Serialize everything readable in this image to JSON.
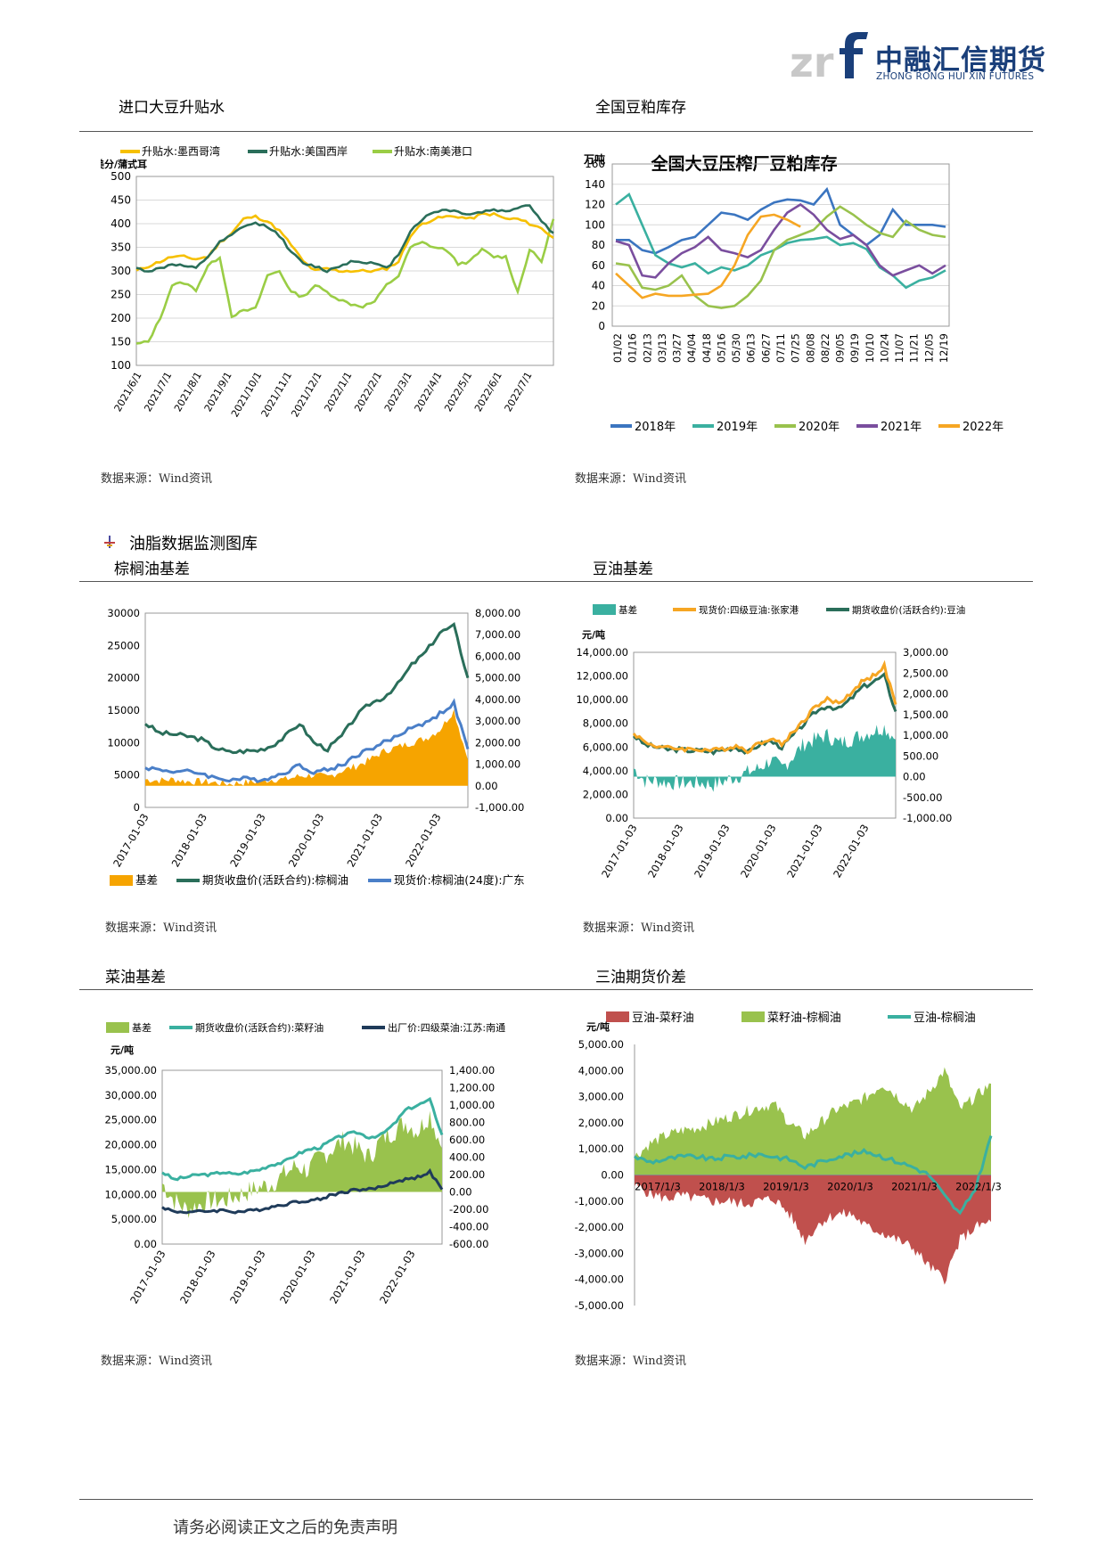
{
  "header": {
    "logo_cn": "中融汇信期货",
    "logo_en": "ZHONG RONG HUI XIN FUTURES"
  },
  "sections": {
    "imported_soy": "进口大豆升贴水",
    "soymeal_stock": "全国豆粕库存",
    "oil_heading": "油脂数据监测图库",
    "palm_basis": "棕榈油基差",
    "soyoil_basis": "豆油基差",
    "rapeoil_basis": "菜油基差",
    "three_oil_spread": "三油期货价差"
  },
  "source": "数据来源：Wind资讯",
  "footer": "请务必阅读正文之后的免责声明",
  "chart_data": [
    {
      "id": "premium",
      "type": "line",
      "legend": [
        "升贴水:墨西哥湾",
        "升贴水:美国西岸",
        "升贴水:南美港口"
      ],
      "ylabel": "美分/蒲式耳",
      "ylim": [
        100,
        500
      ],
      "yticks": [
        "500",
        "450",
        "400",
        "350",
        "300",
        "250",
        "200",
        "150",
        "100"
      ],
      "xticks": [
        "2021/6/1",
        "2021/7/1",
        "2021/8/1",
        "2021/9/1",
        "2021/10/1",
        "2021/11/1",
        "2021/12/1",
        "2022/1/1",
        "2022/2/1",
        "2022/3/1",
        "2022/4/1",
        "2022/5/1",
        "2022/6/1",
        "2022/7/1"
      ],
      "colors": [
        "#f6c000",
        "#2a6e5a",
        "#9acd45"
      ],
      "series": [
        {
          "name": "升贴水:墨西哥湾",
          "values": [
            300,
            310,
            320,
            330,
            330,
            325,
            330,
            360,
            380,
            410,
            415,
            405,
            385,
            355,
            320,
            300,
            305,
            300,
            300,
            300,
            300,
            305,
            320,
            375,
            400,
            410,
            415,
            415,
            410,
            420,
            420,
            410,
            410,
            400,
            390,
            370
          ]
        },
        {
          "name": "升贴水:美国西岸",
          "values": [
            305,
            300,
            305,
            315,
            310,
            305,
            330,
            360,
            375,
            395,
            400,
            395,
            375,
            340,
            315,
            310,
            300,
            310,
            320,
            320,
            315,
            305,
            335,
            385,
            410,
            425,
            430,
            425,
            420,
            425,
            430,
            425,
            435,
            440,
            405,
            380
          ]
        },
        {
          "name": "升贴水:南美港口",
          "values": [
            145,
            150,
            200,
            270,
            275,
            260,
            310,
            330,
            205,
            215,
            220,
            290,
            300,
            255,
            245,
            270,
            255,
            240,
            230,
            225,
            235,
            270,
            290,
            350,
            360,
            350,
            345,
            315,
            320,
            345,
            330,
            330,
            255,
            345,
            320,
            410
          ]
        }
      ]
    },
    {
      "id": "soymeal",
      "type": "line",
      "title": "全国大豆压榨厂豆粕库存",
      "ylabel": "万吨",
      "ylim": [
        0,
        160
      ],
      "yticks": [
        "160",
        "140",
        "120",
        "100",
        "80",
        "60",
        "40",
        "20",
        "0"
      ],
      "xticks": [
        "01/02",
        "01/16",
        "02/13",
        "03/13",
        "03/27",
        "04/04",
        "04/18",
        "05/16",
        "05/30",
        "06/13",
        "06/27",
        "07/11",
        "07/25",
        "08/08",
        "08/22",
        "09/05",
        "09/19",
        "10/10",
        "10/24",
        "11/07",
        "11/21",
        "12/05",
        "12/19"
      ],
      "colors": [
        "#3b75c0",
        "#3ab0a0",
        "#99c24d",
        "#7a4e9e",
        "#f6a623"
      ],
      "series": [
        {
          "name": "2018年",
          "values": [
            85,
            85,
            75,
            72,
            78,
            85,
            88,
            100,
            112,
            110,
            105,
            115,
            122,
            125,
            124,
            120,
            135,
            100,
            90,
            80,
            90,
            115,
            100,
            100,
            100,
            98
          ]
        },
        {
          "name": "2019年",
          "values": [
            120,
            130,
            100,
            70,
            62,
            58,
            62,
            52,
            58,
            55,
            60,
            70,
            75,
            82,
            85,
            86,
            88,
            80,
            82,
            76,
            58,
            50,
            38,
            45,
            48,
            55
          ]
        },
        {
          "name": "2020年",
          "values": [
            62,
            60,
            38,
            36,
            40,
            50,
            30,
            20,
            18,
            20,
            30,
            45,
            75,
            85,
            90,
            95,
            108,
            118,
            110,
            100,
            92,
            88,
            104,
            95,
            90,
            88
          ]
        },
        {
          "name": "2021年",
          "values": [
            84,
            80,
            50,
            48,
            62,
            72,
            78,
            88,
            75,
            72,
            68,
            75,
            95,
            112,
            120,
            110,
            95,
            86,
            90,
            80,
            60,
            50,
            55,
            60,
            52,
            60
          ]
        },
        {
          "name": "2022年",
          "values": [
            52,
            40,
            28,
            32,
            30,
            30,
            31,
            32,
            40,
            60,
            90,
            108,
            110,
            105,
            98
          ]
        }
      ]
    },
    {
      "id": "palm",
      "type": "area",
      "yticks_left": [
        "30000",
        "25000",
        "20000",
        "15000",
        "10000",
        "5000",
        "0"
      ],
      "yticks_right": [
        "8,000.00",
        "7,000.00",
        "6,000.00",
        "5,000.00",
        "4,000.00",
        "3,000.00",
        "2,000.00",
        "1,000.00",
        "0.00",
        "-1,000.00"
      ],
      "xticks": [
        "2017-01-03",
        "2018-01-03",
        "2019-01-03",
        "2020-01-03",
        "2021-01-03",
        "2022-01-03"
      ],
      "legend": [
        "基差",
        "期货收盘价(活跃合约):棕榈油",
        "现货价:棕榈油(24度):广东"
      ],
      "colors": [
        "#f6a400",
        "#2a6e5a",
        "#4a7fc8"
      ],
      "series": [
        {
          "name": "期货收盘价(活跃合约):棕榈油",
          "values": [
            13000,
            11500,
            11300,
            11000,
            10500,
            9200,
            8500,
            8700,
            8800,
            9500,
            11000,
            13000,
            10000,
            9000,
            11000,
            14000,
            16000,
            17000,
            19000,
            22000,
            24000,
            27000,
            28000,
            20000
          ]
        },
        {
          "name": "现货价:棕榈油(24度):广东",
          "values": [
            6200,
            5800,
            5600,
            5500,
            5300,
            4500,
            4300,
            4400,
            4300,
            4600,
            5500,
            6500,
            5500,
            5800,
            6500,
            8000,
            9000,
            10000,
            11000,
            12500,
            13000,
            14500,
            16000,
            9000
          ]
        },
        {
          "name": "基差",
          "values": [
            300,
            250,
            300,
            200,
            200,
            150,
            100,
            150,
            200,
            300,
            300,
            450,
            500,
            400,
            700,
            900,
            1200,
            1600,
            1800,
            2000,
            2200,
            2600,
            3500,
            1200
          ]
        }
      ]
    },
    {
      "id": "soyoil",
      "type": "area",
      "legend": [
        "基差",
        "现货价:四级豆油:张家港",
        "期货收盘价(活跃合约):豆油"
      ],
      "ylabel": "元/吨",
      "yticks_left": [
        "14,000.00",
        "12,000.00",
        "10,000.00",
        "8,000.00",
        "6,000.00",
        "4,000.00",
        "2,000.00",
        "0.00"
      ],
      "yticks_right": [
        "3,000.00",
        "2,500.00",
        "2,000.00",
        "1,500.00",
        "1,000.00",
        "500.00",
        "0.00",
        "-500.00",
        "-1,000.00"
      ],
      "xticks": [
        "2017-01-03",
        "2018-01-03",
        "2019-01-03",
        "2020-01-03",
        "2021-01-03",
        "2022-01-03"
      ],
      "colors": [
        "#3ab0a0",
        "#f6a623",
        "#2a6e5a"
      ],
      "series": [
        {
          "name": "期货收盘价(活跃合约):豆油",
          "values": [
            7000,
            6200,
            6000,
            5800,
            5800,
            5700,
            5700,
            5600,
            5800,
            6000,
            5500,
            6200,
            6500,
            6000,
            7000,
            8000,
            9000,
            9500,
            9200,
            10000,
            11000,
            11500,
            12000,
            9000
          ]
        },
        {
          "name": "现货价:四级豆油:张家港",
          "values": [
            7200,
            6400,
            6100,
            5900,
            5900,
            5800,
            5800,
            5700,
            5900,
            6100,
            5700,
            6300,
            6800,
            6200,
            7300,
            8300,
            9500,
            10000,
            9700,
            10500,
            11500,
            12000,
            12800,
            9600
          ]
        },
        {
          "name": "基差",
          "values": [
            200,
            -100,
            -100,
            -150,
            -150,
            -150,
            -150,
            -200,
            -100,
            0,
            100,
            200,
            400,
            200,
            500,
            800,
            900,
            1000,
            800,
            900,
            1000,
            1100,
            1200,
            900
          ]
        }
      ]
    },
    {
      "id": "rapeoil",
      "type": "area",
      "legend": [
        "基差",
        "期货收盘价(活跃合约):菜籽油",
        "出厂价:四级菜油:江苏:南通"
      ],
      "ylabel": "元/吨",
      "yticks_left": [
        "35,000.00",
        "30,000.00",
        "25,000.00",
        "20,000.00",
        "15,000.00",
        "10,000.00",
        "5,000.00",
        "0.00"
      ],
      "yticks_right": [
        "1,400.00",
        "1,200.00",
        "1,000.00",
        "800.00",
        "600.00",
        "400.00",
        "200.00",
        "0.00",
        "-200.00",
        "-400.00",
        "-600.00"
      ],
      "xticks": [
        "2017-01-03",
        "2018-01-03",
        "2019-01-03",
        "2020-01-03",
        "2021-01-03",
        "2022-01-03"
      ],
      "colors": [
        "#99c24d",
        "#3ab0a0",
        "#1f3b5a"
      ],
      "series": [
        {
          "name": "期货收盘价(活跃合约):菜籽油",
          "values": [
            14500,
            13000,
            13500,
            14000,
            14000,
            14500,
            14000,
            14500,
            15000,
            16000,
            16500,
            18000,
            19000,
            19500,
            21000,
            22000,
            22500,
            21500,
            22000,
            24000,
            27000,
            28000,
            29000,
            22000
          ]
        },
        {
          "name": "出厂价:四级菜油:江苏:南通",
          "values": [
            7500,
            6500,
            6500,
            6500,
            6700,
            6800,
            6500,
            6600,
            7000,
            7500,
            8000,
            8500,
            8800,
            9000,
            10000,
            10500,
            11000,
            11000,
            11500,
            12500,
            13000,
            13500,
            14500,
            11000
          ]
        },
        {
          "name": "基差",
          "values": [
            100,
            -100,
            -200,
            -150,
            -100,
            -100,
            -50,
            0,
            50,
            100,
            200,
            300,
            250,
            400,
            500,
            600,
            500,
            400,
            600,
            700,
            800,
            700,
            900,
            500
          ]
        }
      ]
    },
    {
      "id": "spread",
      "type": "area",
      "legend": [
        "豆油-菜籽油",
        "菜籽油-棕榈油",
        "豆油-棕榈油"
      ],
      "ylabel": "元/吨",
      "yticks": [
        "5,000.00",
        "4,000.00",
        "3,000.00",
        "2,000.00",
        "1,000.00",
        "0.00",
        "-1,000.00",
        "-2,000.00",
        "-3,000.00",
        "-4,000.00",
        "-5,000.00"
      ],
      "xticks": [
        "2017/1/3",
        "2018/1/3",
        "2019/1/3",
        "2020/1/3",
        "2021/1/3",
        "2022/1/3"
      ],
      "colors": [
        "#c0504d",
        "#99c24d",
        "#3ab0a0"
      ],
      "series": [
        {
          "name": "豆油-菜籽油",
          "values": [
            -400,
            -700,
            -900,
            -800,
            -900,
            -1000,
            -1000,
            -1100,
            -1000,
            -900,
            -1500,
            -2500,
            -1800,
            -1500,
            -1500,
            -2000,
            -2200,
            -2500,
            -2800,
            -3500,
            -4000,
            -2500,
            -2000,
            -1800
          ]
        },
        {
          "name": "菜籽油-棕榈油",
          "values": [
            700,
            1200,
            1500,
            1700,
            1800,
            2000,
            2200,
            2400,
            2600,
            2700,
            2000,
            1500,
            2000,
            2500,
            2700,
            3000,
            3500,
            3000,
            2500,
            3200,
            4000,
            2500,
            3000,
            3500
          ]
        },
        {
          "name": "豆油-棕榈油",
          "values": [
            700,
            500,
            600,
            700,
            700,
            600,
            700,
            700,
            800,
            700,
            600,
            300,
            500,
            700,
            800,
            900,
            700,
            500,
            300,
            0,
            -800,
            -1500,
            -500,
            1500
          ]
        }
      ]
    }
  ]
}
